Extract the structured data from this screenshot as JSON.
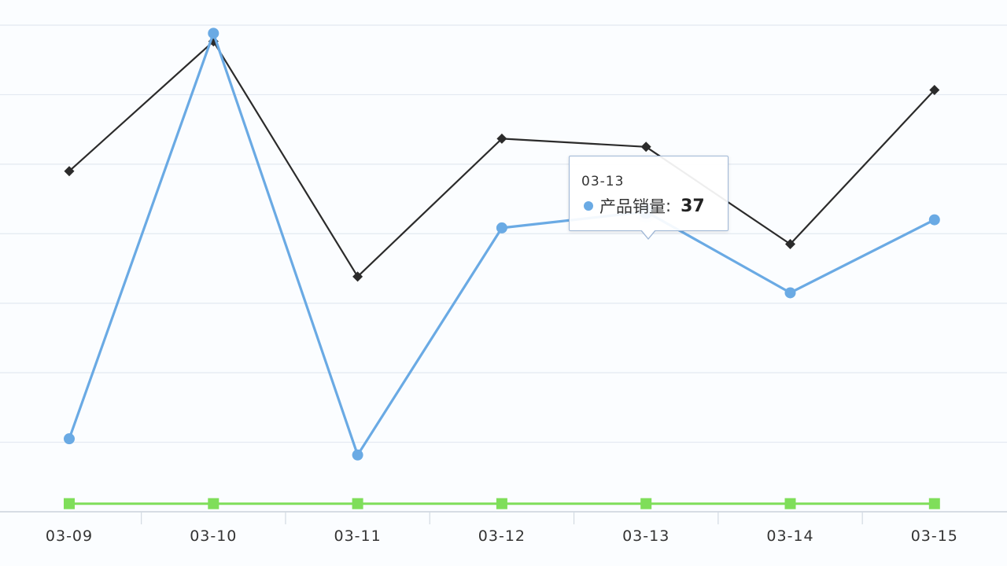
{
  "chart_data": {
    "type": "line",
    "categories": [
      "03-09",
      "03-10",
      "03-11",
      "03-12",
      "03-13",
      "03-14",
      "03-15"
    ],
    "ylim": [
      0,
      60
    ],
    "grid": true,
    "series": [
      {
        "name": "产品销量",
        "color": "#6aaae4",
        "marker": "circle",
        "values": [
          9,
          59,
          7,
          35,
          37,
          27,
          36
        ]
      },
      {
        "color": "#2b2b2b",
        "marker": "diamond",
        "values": [
          42,
          58,
          29,
          46,
          45,
          33,
          52
        ]
      },
      {
        "color": "#7fde5a",
        "marker": "square",
        "values": [
          1,
          1,
          1,
          1,
          1,
          1,
          1
        ]
      }
    ],
    "tooltip": {
      "title": "03-13",
      "label": "产品销量",
      "separator": ":",
      "value": "37",
      "dot_color": "#6aaae4"
    }
  }
}
